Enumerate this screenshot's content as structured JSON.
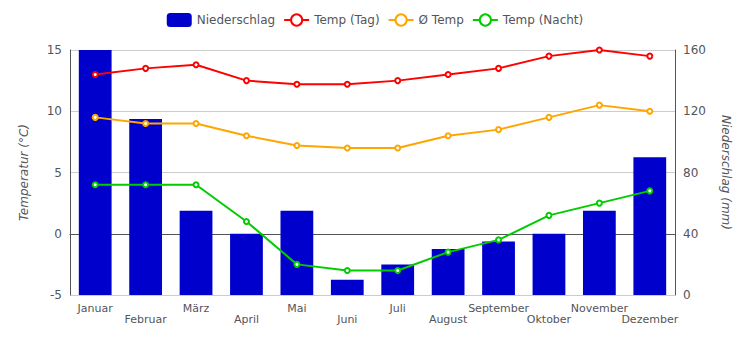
{
  "chart_data": {
    "type": "bar",
    "categories": [
      "Januar",
      "Februar",
      "März",
      "April",
      "Mai",
      "Juni",
      "Juli",
      "August",
      "September",
      "Oktober",
      "November",
      "Dezember"
    ],
    "series": [
      {
        "name": "Niederschlag",
        "type": "bar",
        "axis": "y2",
        "color": "#0000cc",
        "values": [
          160,
          115,
          55,
          40,
          55,
          10,
          20,
          30,
          35,
          40,
          55,
          90
        ]
      },
      {
        "name": "Temp (Tag)",
        "type": "line",
        "color": "#ff0000",
        "values": [
          13.0,
          13.5,
          13.8,
          12.5,
          12.2,
          12.2,
          12.5,
          13.0,
          13.5,
          14.5,
          15.0,
          14.5
        ]
      },
      {
        "name": "Ø Temp",
        "type": "line",
        "color": "#ffa500",
        "values": [
          9.5,
          9.0,
          9.0,
          8.0,
          7.2,
          7.0,
          7.0,
          8.0,
          8.5,
          9.5,
          10.5,
          10.0
        ]
      },
      {
        "name": "Temp (Nacht)",
        "type": "line",
        "color": "#00cc00",
        "values": [
          4.0,
          4.0,
          4.0,
          1.0,
          -2.5,
          -3.0,
          -3.0,
          -1.5,
          -0.5,
          1.5,
          2.5,
          3.5
        ]
      }
    ],
    "ylabel": "Temperatur (°C)",
    "y2label": "Niederschlag (mm)",
    "ylim": [
      -5,
      15
    ],
    "yticks": [
      -5,
      0,
      5,
      10,
      15
    ],
    "y2lim": [
      0,
      160
    ],
    "y2ticks": [
      0,
      40,
      80,
      120,
      160
    ],
    "grid": true,
    "legend": "top"
  }
}
